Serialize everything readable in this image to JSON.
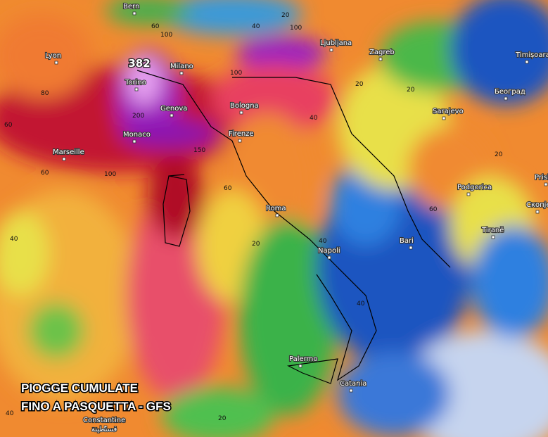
{
  "title_lines": [
    "PIOGGE CUMULATE",
    "FINO A PASQUETTA - GFS"
  ],
  "max_value": 382,
  "cities": [
    "Bern",
    "Lyon",
    "Milano",
    "Torino",
    "Genova",
    "Monaco",
    "Marseille",
    "Bologna",
    "Firenze",
    "Ljubljana",
    "Zagreb",
    "Timișoara",
    "Београд",
    "Sarajevo",
    "Podgorica",
    "Prishtina",
    "Скопје",
    "Tiranë",
    "Roma",
    "Napoli",
    "Bari",
    "Palermo",
    "Catania",
    "Constantine",
    "قسنطينة"
  ],
  "contour_labels": [
    60,
    100,
    80,
    60,
    60,
    40,
    100,
    200,
    150,
    100,
    40,
    20,
    100,
    60,
    40,
    20,
    40,
    60,
    40,
    20,
    20,
    20,
    20,
    40
  ]
}
